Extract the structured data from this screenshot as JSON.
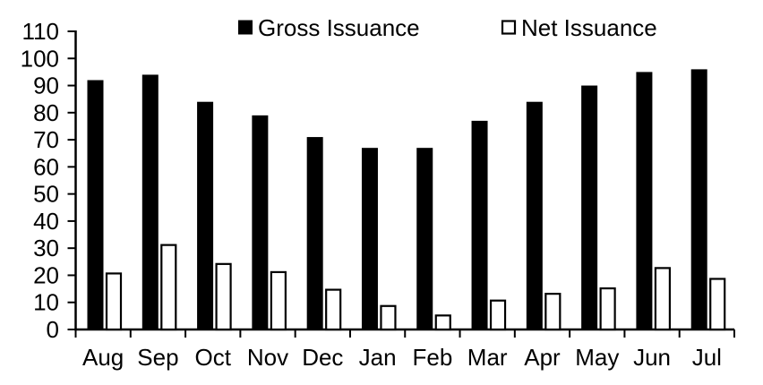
{
  "chart_data": {
    "type": "bar",
    "title": "",
    "xlabel": "",
    "ylabel": "",
    "categories": [
      "Aug",
      "Sep",
      "Oct",
      "Nov",
      "Dec",
      "Jan",
      "Feb",
      "Mar",
      "Apr",
      "May",
      "Jun",
      "Jul"
    ],
    "series": [
      {
        "name": "Gross Issuance",
        "values": [
          92,
          94,
          84,
          79,
          71,
          67,
          67,
          77,
          84,
          90,
          95,
          96
        ],
        "fill": "#000000",
        "stroke": "#000000",
        "swatch": "filled-black-square"
      },
      {
        "name": "Net Issuance",
        "values": [
          21,
          31.5,
          24.5,
          21.5,
          15,
          9,
          5.5,
          11,
          13.5,
          15.5,
          23,
          19
        ],
        "fill": "#ffffff",
        "stroke": "#000000",
        "swatch": "outlined-white-square"
      }
    ],
    "ylim": [
      0,
      110
    ],
    "ytick_step": 10,
    "yticks": [
      0,
      10,
      20,
      30,
      40,
      50,
      60,
      70,
      80,
      90,
      100,
      110
    ],
    "grid": false,
    "legend_position": "top-inside",
    "axis_color": "#000000",
    "background": "#ffffff"
  },
  "legend": {
    "entries": [
      {
        "label": "Gross Issuance",
        "swatch": "filled-black-square"
      },
      {
        "label": "Net Issuance",
        "swatch": "outlined-white-square"
      }
    ]
  }
}
